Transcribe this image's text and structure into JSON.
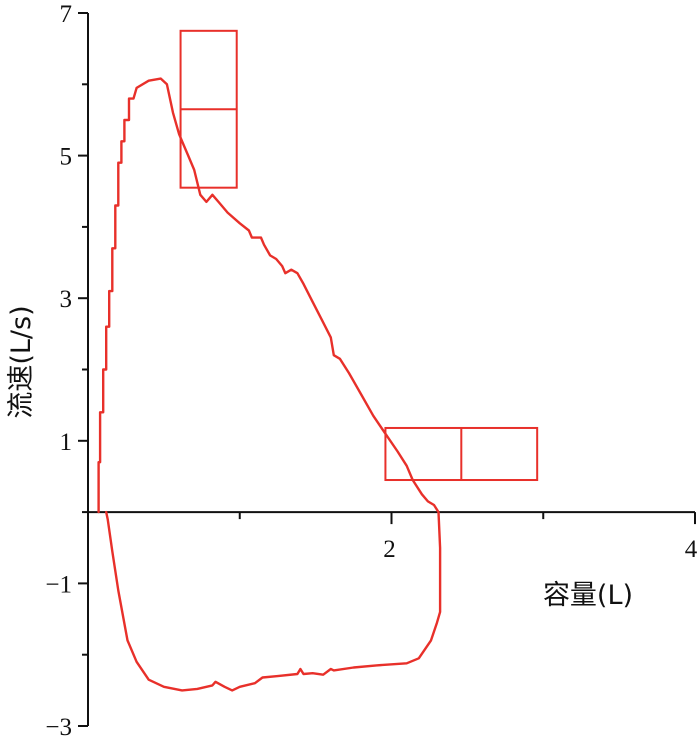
{
  "chart_data": {
    "type": "line",
    "title": "",
    "xlabel": "容量(L)",
    "ylabel": "流速(L/s)",
    "xlim": [
      0,
      4
    ],
    "ylim": [
      -3,
      7
    ],
    "x_ticks": [
      {
        "value": 2,
        "label": "2"
      },
      {
        "value": 4,
        "label": "4"
      }
    ],
    "y_ticks": [
      {
        "value": 7,
        "label": "7"
      },
      {
        "value": 5,
        "label": "5"
      },
      {
        "value": 3,
        "label": "3"
      },
      {
        "value": 1,
        "label": "1"
      },
      {
        "value": -1,
        "label": "−1"
      },
      {
        "value": -3,
        "label": "−3"
      }
    ],
    "grid": false,
    "colors": {
      "curve": "#e8302a",
      "axis": "#111111"
    },
    "series": [
      {
        "name": "",
        "points": [
          [
            0.07,
            0.0
          ],
          [
            0.07,
            0.7
          ],
          [
            0.08,
            0.7
          ],
          [
            0.08,
            1.4
          ],
          [
            0.1,
            1.4
          ],
          [
            0.1,
            2.0
          ],
          [
            0.12,
            2.0
          ],
          [
            0.12,
            2.6
          ],
          [
            0.14,
            2.6
          ],
          [
            0.14,
            3.1
          ],
          [
            0.16,
            3.1
          ],
          [
            0.16,
            3.7
          ],
          [
            0.18,
            3.7
          ],
          [
            0.18,
            4.3
          ],
          [
            0.2,
            4.3
          ],
          [
            0.2,
            4.9
          ],
          [
            0.22,
            4.9
          ],
          [
            0.22,
            5.2
          ],
          [
            0.24,
            5.2
          ],
          [
            0.24,
            5.5
          ],
          [
            0.27,
            5.5
          ],
          [
            0.27,
            5.8
          ],
          [
            0.3,
            5.8
          ],
          [
            0.32,
            5.95
          ],
          [
            0.4,
            6.05
          ],
          [
            0.48,
            6.08
          ],
          [
            0.52,
            6.0
          ],
          [
            0.56,
            5.6
          ],
          [
            0.6,
            5.3
          ],
          [
            0.63,
            5.15
          ],
          [
            0.66,
            5.0
          ],
          [
            0.7,
            4.8
          ],
          [
            0.74,
            4.45
          ],
          [
            0.78,
            4.35
          ],
          [
            0.82,
            4.45
          ],
          [
            0.86,
            4.35
          ],
          [
            0.92,
            4.2
          ],
          [
            1.0,
            4.05
          ],
          [
            1.06,
            3.95
          ],
          [
            1.08,
            3.85
          ],
          [
            1.14,
            3.85
          ],
          [
            1.16,
            3.75
          ],
          [
            1.2,
            3.6
          ],
          [
            1.24,
            3.55
          ],
          [
            1.28,
            3.45
          ],
          [
            1.3,
            3.35
          ],
          [
            1.34,
            3.4
          ],
          [
            1.38,
            3.35
          ],
          [
            1.42,
            3.2
          ],
          [
            1.48,
            2.95
          ],
          [
            1.54,
            2.7
          ],
          [
            1.6,
            2.45
          ],
          [
            1.62,
            2.2
          ],
          [
            1.66,
            2.15
          ],
          [
            1.72,
            1.95
          ],
          [
            1.8,
            1.65
          ],
          [
            1.88,
            1.35
          ],
          [
            1.96,
            1.1
          ],
          [
            2.04,
            0.85
          ],
          [
            2.1,
            0.65
          ],
          [
            2.14,
            0.45
          ],
          [
            2.2,
            0.25
          ],
          [
            2.24,
            0.15
          ],
          [
            2.28,
            0.1
          ],
          [
            2.31,
            0.0
          ],
          [
            2.32,
            -0.5
          ],
          [
            2.32,
            -1.4
          ],
          [
            2.3,
            -1.55
          ],
          [
            2.26,
            -1.8
          ],
          [
            2.18,
            -2.05
          ],
          [
            2.1,
            -2.12
          ],
          [
            1.9,
            -2.15
          ],
          [
            1.75,
            -2.18
          ],
          [
            1.62,
            -2.22
          ],
          [
            1.6,
            -2.2
          ],
          [
            1.55,
            -2.28
          ],
          [
            1.48,
            -2.26
          ],
          [
            1.42,
            -2.27
          ],
          [
            1.4,
            -2.2
          ],
          [
            1.38,
            -2.27
          ],
          [
            1.25,
            -2.3
          ],
          [
            1.15,
            -2.32
          ],
          [
            1.1,
            -2.4
          ],
          [
            1.0,
            -2.45
          ],
          [
            0.95,
            -2.5
          ],
          [
            0.9,
            -2.45
          ],
          [
            0.84,
            -2.38
          ],
          [
            0.82,
            -2.43
          ],
          [
            0.72,
            -2.48
          ],
          [
            0.62,
            -2.5
          ],
          [
            0.5,
            -2.45
          ],
          [
            0.4,
            -2.35
          ],
          [
            0.32,
            -2.1
          ],
          [
            0.26,
            -1.8
          ],
          [
            0.2,
            -1.1
          ],
          [
            0.16,
            -0.55
          ],
          [
            0.13,
            -0.1
          ],
          [
            0.12,
            0.0
          ]
        ]
      }
    ],
    "boxes": [
      {
        "x1": 0.61,
        "x2": 0.98,
        "y1": 4.55,
        "y2": 6.75,
        "divider_y": 5.65
      },
      {
        "x1": 1.96,
        "x2": 2.96,
        "y1": 0.45,
        "y2": 1.18,
        "divider_x": 2.46
      }
    ]
  }
}
